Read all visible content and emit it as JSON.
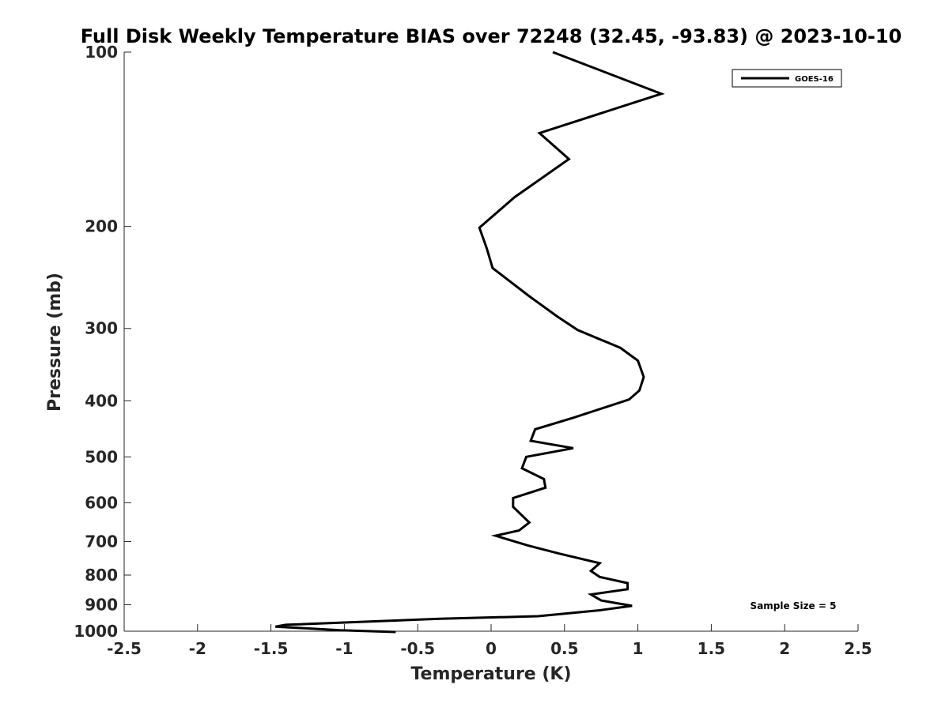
{
  "chart_data": {
    "type": "line",
    "title": "Full Disk Weekly Temperature BIAS over 72248 (32.45, -93.83) @ 2023-10-10",
    "xlabel": "Temperature (K)",
    "ylabel": "Pressure (mb)",
    "xlim": [
      -2.5,
      2.5
    ],
    "ylim": [
      1000,
      100
    ],
    "y_scale": "log",
    "x_ticks": [
      "-2.5",
      "-2",
      "-1.5",
      "-1",
      "-0.5",
      "0",
      "0.5",
      "1",
      "1.5",
      "2",
      "2.5"
    ],
    "y_ticks": [
      "100",
      "200",
      "300",
      "400",
      "500",
      "600",
      "700",
      "800",
      "900",
      "1000"
    ],
    "grid": false,
    "legend": {
      "entries": [
        "GOES-16"
      ],
      "position": "top-right"
    },
    "annotation": "Sample Size = 5",
    "series": [
      {
        "name": "GOES-16",
        "color": "#000000",
        "points": [
          [
            0.42,
            100
          ],
          [
            1.16,
            118
          ],
          [
            0.33,
            138
          ],
          [
            0.53,
            153
          ],
          [
            0.16,
            178
          ],
          [
            -0.08,
            201
          ],
          [
            -0.03,
            218
          ],
          [
            0.01,
            236
          ],
          [
            0.26,
            264
          ],
          [
            0.45,
            286
          ],
          [
            0.59,
            302
          ],
          [
            0.88,
            324
          ],
          [
            1.0,
            341
          ],
          [
            1.04,
            364
          ],
          [
            1.01,
            384
          ],
          [
            0.94,
            398
          ],
          [
            0.56,
            428
          ],
          [
            0.3,
            448
          ],
          [
            0.27,
            469
          ],
          [
            0.56,
            483
          ],
          [
            0.24,
            500
          ],
          [
            0.21,
            523
          ],
          [
            0.36,
            546
          ],
          [
            0.37,
            565
          ],
          [
            0.15,
            589
          ],
          [
            0.15,
            610
          ],
          [
            0.26,
            649
          ],
          [
            0.19,
            670
          ],
          [
            0.03,
            684
          ],
          [
            0.25,
            711
          ],
          [
            0.46,
            734
          ],
          [
            0.74,
            763
          ],
          [
            0.68,
            787
          ],
          [
            0.74,
            806
          ],
          [
            0.93,
            826
          ],
          [
            0.93,
            846
          ],
          [
            0.68,
            864
          ],
          [
            0.75,
            885
          ],
          [
            0.96,
            904
          ],
          [
            0.74,
            920
          ],
          [
            0.32,
            942
          ],
          [
            -0.35,
            952
          ],
          [
            -1.4,
            975
          ],
          [
            -1.47,
            982
          ],
          [
            -1.03,
            996
          ],
          [
            -0.65,
            1003
          ]
        ]
      }
    ]
  }
}
